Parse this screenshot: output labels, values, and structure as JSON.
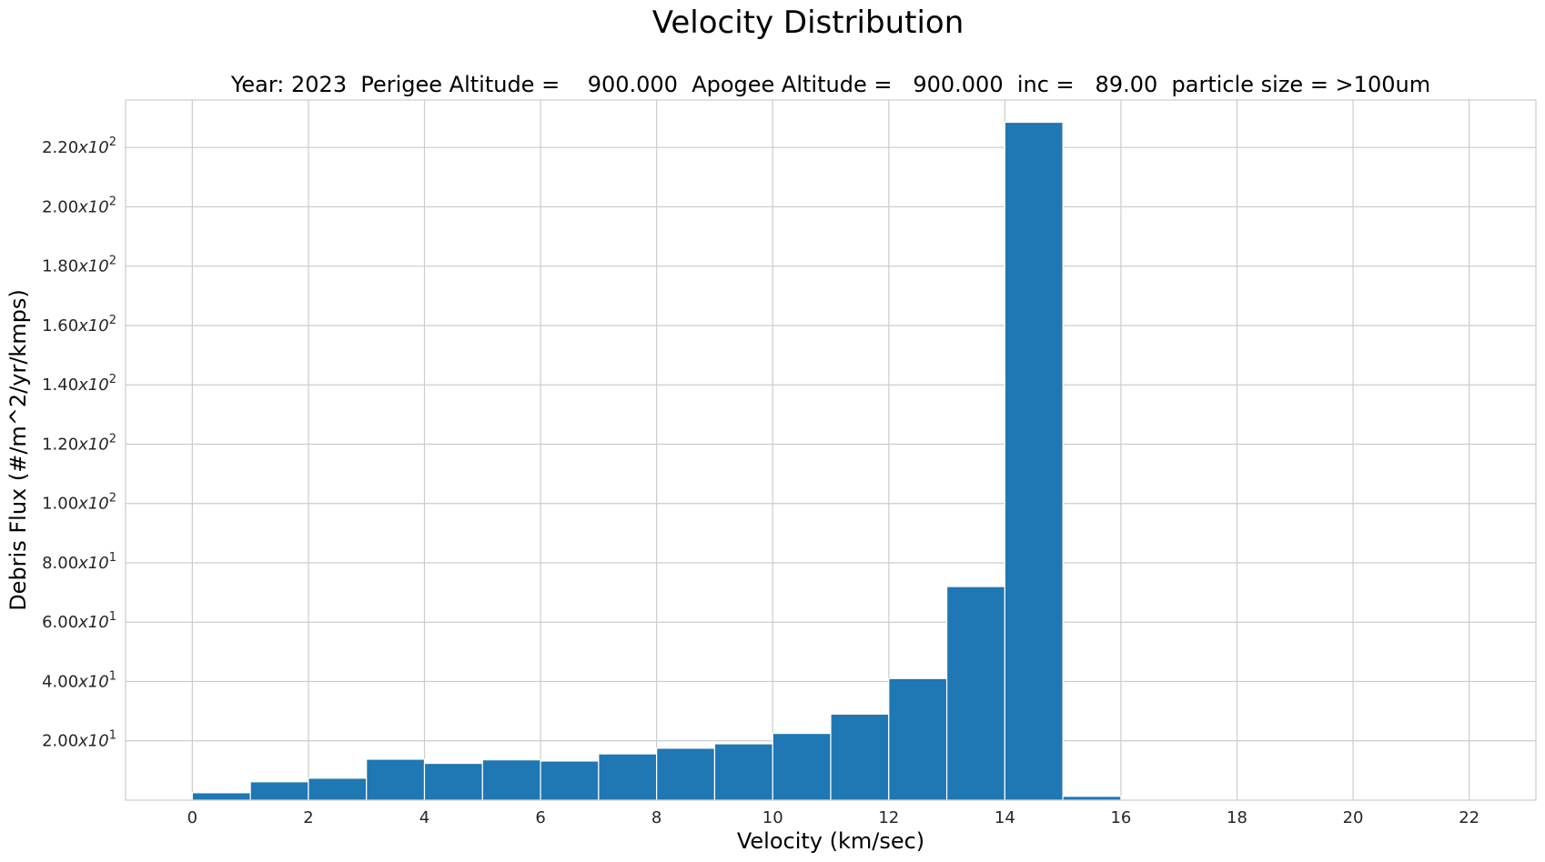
{
  "chart_data": {
    "type": "bar",
    "title": "Velocity Distribution",
    "subtitle": "Year: 2023  Perigee Altitude =    900.000  Apogee Altitude =   900.000  inc =   89.00  particle size = >100um",
    "xlabel": "Velocity (km/sec)",
    "ylabel": "Debris Flux (#/m^2/yr/kmps)",
    "bin_width": 1,
    "x": [
      0,
      1,
      2,
      3,
      4,
      5,
      6,
      7,
      8,
      9,
      10,
      11,
      12,
      13,
      14,
      15,
      16,
      17,
      18,
      19,
      20,
      21,
      22
    ],
    "values": [
      2.5,
      6.2,
      7.4,
      13.8,
      12.4,
      13.6,
      13.2,
      15.6,
      17.5,
      19.0,
      22.5,
      29.0,
      41.0,
      72.0,
      228.5,
      1.3,
      0.3,
      0.05,
      0.02,
      0.01,
      0.01,
      0.01,
      0.01
    ],
    "xlim": [
      -1.15,
      23.15
    ],
    "ylim": [
      0,
      236
    ],
    "xticks": [
      0,
      2,
      4,
      6,
      8,
      10,
      12,
      14,
      16,
      18,
      20,
      22
    ],
    "yticks": [
      {
        "value": 20,
        "mantissa": "2.00",
        "exp": "1"
      },
      {
        "value": 40,
        "mantissa": "4.00",
        "exp": "1"
      },
      {
        "value": 60,
        "mantissa": "6.00",
        "exp": "1"
      },
      {
        "value": 80,
        "mantissa": "8.00",
        "exp": "1"
      },
      {
        "value": 100,
        "mantissa": "1.00",
        "exp": "2"
      },
      {
        "value": 120,
        "mantissa": "1.20",
        "exp": "2"
      },
      {
        "value": 140,
        "mantissa": "1.40",
        "exp": "2"
      },
      {
        "value": 160,
        "mantissa": "1.60",
        "exp": "2"
      },
      {
        "value": 180,
        "mantissa": "1.80",
        "exp": "2"
      },
      {
        "value": 200,
        "mantissa": "2.00",
        "exp": "2"
      },
      {
        "value": 220,
        "mantissa": "2.20",
        "exp": "2"
      }
    ],
    "ytick_multiplier": "x10",
    "bar_color": "#1f77b4",
    "grid": true
  }
}
